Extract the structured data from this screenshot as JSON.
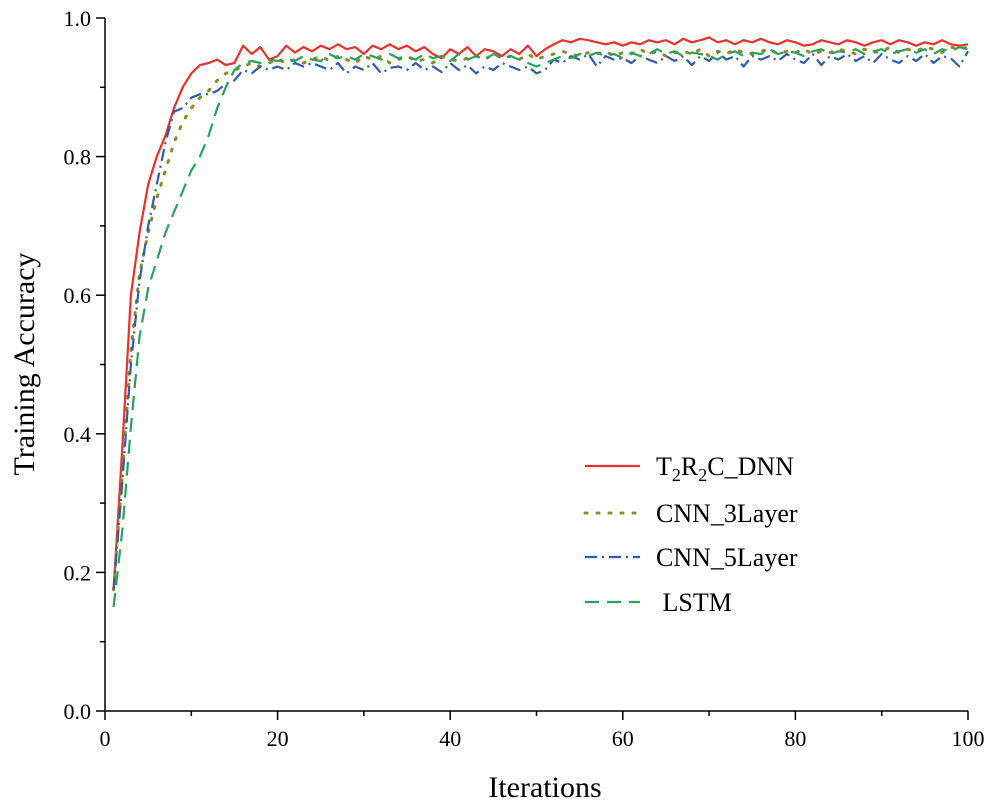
{
  "chart_data": {
    "type": "line",
    "title": "",
    "xlabel": "Iterations",
    "ylabel": "Training Accuracy",
    "xlim": [
      0,
      100
    ],
    "ylim": [
      0.0,
      1.0
    ],
    "xticks": [
      0,
      20,
      40,
      60,
      80,
      100
    ],
    "yticks": [
      0.0,
      0.2,
      0.4,
      0.6,
      0.8,
      1.0
    ],
    "xtick_labels": [
      "0",
      "20",
      "40",
      "60",
      "80",
      "100"
    ],
    "ytick_labels": [
      "0.0",
      "0.2",
      "0.4",
      "0.6",
      "0.8",
      "1.0"
    ],
    "grid": false,
    "legend_position": "center-right",
    "legend": {
      "t2r2c": {
        "p1": "T",
        "s1": "2",
        "p2": "R",
        "s2": "2",
        "p3": "C_DNN"
      },
      "cnn3": "CNN_3Layer",
      "cnn5": "CNN_5Layer",
      "lstm": " LSTM"
    },
    "x": [
      1,
      2,
      3,
      4,
      5,
      6,
      7,
      8,
      9,
      10,
      11,
      12,
      13,
      14,
      15,
      16,
      17,
      18,
      19,
      20,
      21,
      22,
      23,
      24,
      25,
      26,
      27,
      28,
      29,
      30,
      31,
      32,
      33,
      34,
      35,
      36,
      37,
      38,
      39,
      40,
      41,
      42,
      43,
      44,
      45,
      46,
      47,
      48,
      49,
      50,
      51,
      52,
      53,
      54,
      55,
      56,
      57,
      58,
      59,
      60,
      61,
      62,
      63,
      64,
      65,
      66,
      67,
      68,
      69,
      70,
      71,
      72,
      73,
      74,
      75,
      76,
      77,
      78,
      79,
      80,
      81,
      82,
      83,
      84,
      85,
      86,
      87,
      88,
      89,
      90,
      91,
      92,
      93,
      94,
      95,
      96,
      97,
      98,
      99,
      100
    ],
    "series": [
      {
        "name": "T2R2C_DNN",
        "color": "#e8312c",
        "dash": "solid",
        "values": [
          0.175,
          0.38,
          0.6,
          0.69,
          0.76,
          0.8,
          0.83,
          0.87,
          0.9,
          0.92,
          0.932,
          0.935,
          0.94,
          0.932,
          0.935,
          0.96,
          0.948,
          0.958,
          0.94,
          0.945,
          0.96,
          0.95,
          0.958,
          0.952,
          0.96,
          0.955,
          0.962,
          0.955,
          0.958,
          0.948,
          0.96,
          0.955,
          0.962,
          0.955,
          0.96,
          0.952,
          0.958,
          0.948,
          0.942,
          0.955,
          0.948,
          0.958,
          0.945,
          0.955,
          0.952,
          0.945,
          0.955,
          0.948,
          0.96,
          0.945,
          0.955,
          0.962,
          0.968,
          0.965,
          0.97,
          0.968,
          0.965,
          0.962,
          0.965,
          0.96,
          0.965,
          0.962,
          0.968,
          0.965,
          0.968,
          0.962,
          0.97,
          0.965,
          0.968,
          0.972,
          0.965,
          0.968,
          0.962,
          0.968,
          0.965,
          0.97,
          0.965,
          0.962,
          0.968,
          0.965,
          0.96,
          0.962,
          0.968,
          0.965,
          0.962,
          0.968,
          0.965,
          0.96,
          0.965,
          0.968,
          0.962,
          0.968,
          0.965,
          0.96,
          0.965,
          0.962,
          0.968,
          0.962,
          0.96,
          0.962
        ]
      },
      {
        "name": "CNN_3Layer",
        "color": "#8c8a22",
        "dash": "dot",
        "values": [
          0.175,
          0.34,
          0.52,
          0.63,
          0.69,
          0.74,
          0.78,
          0.82,
          0.85,
          0.87,
          0.885,
          0.895,
          0.91,
          0.92,
          0.925,
          0.93,
          0.935,
          0.93,
          0.935,
          0.94,
          0.935,
          0.94,
          0.935,
          0.94,
          0.945,
          0.938,
          0.945,
          0.94,
          0.935,
          0.945,
          0.94,
          0.945,
          0.935,
          0.94,
          0.945,
          0.938,
          0.94,
          0.935,
          0.945,
          0.94,
          0.938,
          0.942,
          0.945,
          0.94,
          0.948,
          0.942,
          0.945,
          0.94,
          0.948,
          0.94,
          0.945,
          0.948,
          0.952,
          0.948,
          0.945,
          0.95,
          0.948,
          0.952,
          0.945,
          0.95,
          0.948,
          0.955,
          0.948,
          0.952,
          0.945,
          0.95,
          0.952,
          0.948,
          0.955,
          0.945,
          0.952,
          0.948,
          0.955,
          0.95,
          0.948,
          0.952,
          0.955,
          0.948,
          0.952,
          0.95,
          0.955,
          0.948,
          0.952,
          0.95,
          0.955,
          0.952,
          0.948,
          0.955,
          0.95,
          0.952,
          0.958,
          0.95,
          0.955,
          0.952,
          0.958,
          0.955,
          0.95,
          0.958,
          0.955,
          0.958
        ]
      },
      {
        "name": "CNN_5Layer",
        "color": "#2e5cab",
        "dash": "dashdot",
        "values": [
          0.175,
          0.33,
          0.5,
          0.62,
          0.7,
          0.76,
          0.82,
          0.865,
          0.87,
          0.885,
          0.89,
          0.89,
          0.895,
          0.905,
          0.91,
          0.925,
          0.92,
          0.93,
          0.925,
          0.93,
          0.925,
          0.935,
          0.93,
          0.935,
          0.93,
          0.925,
          0.935,
          0.92,
          0.93,
          0.925,
          0.935,
          0.92,
          0.928,
          0.93,
          0.925,
          0.935,
          0.925,
          0.93,
          0.922,
          0.935,
          0.925,
          0.932,
          0.92,
          0.93,
          0.925,
          0.935,
          0.93,
          0.925,
          0.93,
          0.92,
          0.925,
          0.94,
          0.935,
          0.945,
          0.94,
          0.948,
          0.93,
          0.945,
          0.94,
          0.942,
          0.935,
          0.945,
          0.94,
          0.935,
          0.945,
          0.938,
          0.945,
          0.932,
          0.945,
          0.938,
          0.95,
          0.94,
          0.945,
          0.93,
          0.945,
          0.94,
          0.945,
          0.938,
          0.948,
          0.94,
          0.935,
          0.948,
          0.932,
          0.945,
          0.94,
          0.948,
          0.938,
          0.945,
          0.935,
          0.948,
          0.94,
          0.935,
          0.945,
          0.938,
          0.948,
          0.935,
          0.945,
          0.942,
          0.93,
          0.952
        ]
      },
      {
        "name": "LSTM",
        "color": "#2aa05a",
        "dash": "dash",
        "values": [
          0.15,
          0.26,
          0.41,
          0.54,
          0.61,
          0.65,
          0.69,
          0.72,
          0.75,
          0.78,
          0.8,
          0.83,
          0.87,
          0.9,
          0.925,
          0.935,
          0.938,
          0.935,
          0.94,
          0.938,
          0.942,
          0.938,
          0.945,
          0.94,
          0.938,
          0.948,
          0.942,
          0.945,
          0.94,
          0.948,
          0.945,
          0.94,
          0.948,
          0.942,
          0.945,
          0.94,
          0.948,
          0.942,
          0.945,
          0.938,
          0.948,
          0.94,
          0.945,
          0.94,
          0.948,
          0.942,
          0.945,
          0.94,
          0.935,
          0.93,
          0.935,
          0.94,
          0.945,
          0.942,
          0.948,
          0.945,
          0.95,
          0.945,
          0.948,
          0.942,
          0.95,
          0.945,
          0.948,
          0.955,
          0.948,
          0.952,
          0.945,
          0.95,
          0.948,
          0.945,
          0.94,
          0.948,
          0.952,
          0.945,
          0.95,
          0.948,
          0.955,
          0.948,
          0.952,
          0.95,
          0.945,
          0.952,
          0.955,
          0.948,
          0.952,
          0.95,
          0.955,
          0.948,
          0.952,
          0.955,
          0.948,
          0.952,
          0.955,
          0.95,
          0.955,
          0.948,
          0.955,
          0.952,
          0.958,
          0.955
        ]
      }
    ]
  }
}
